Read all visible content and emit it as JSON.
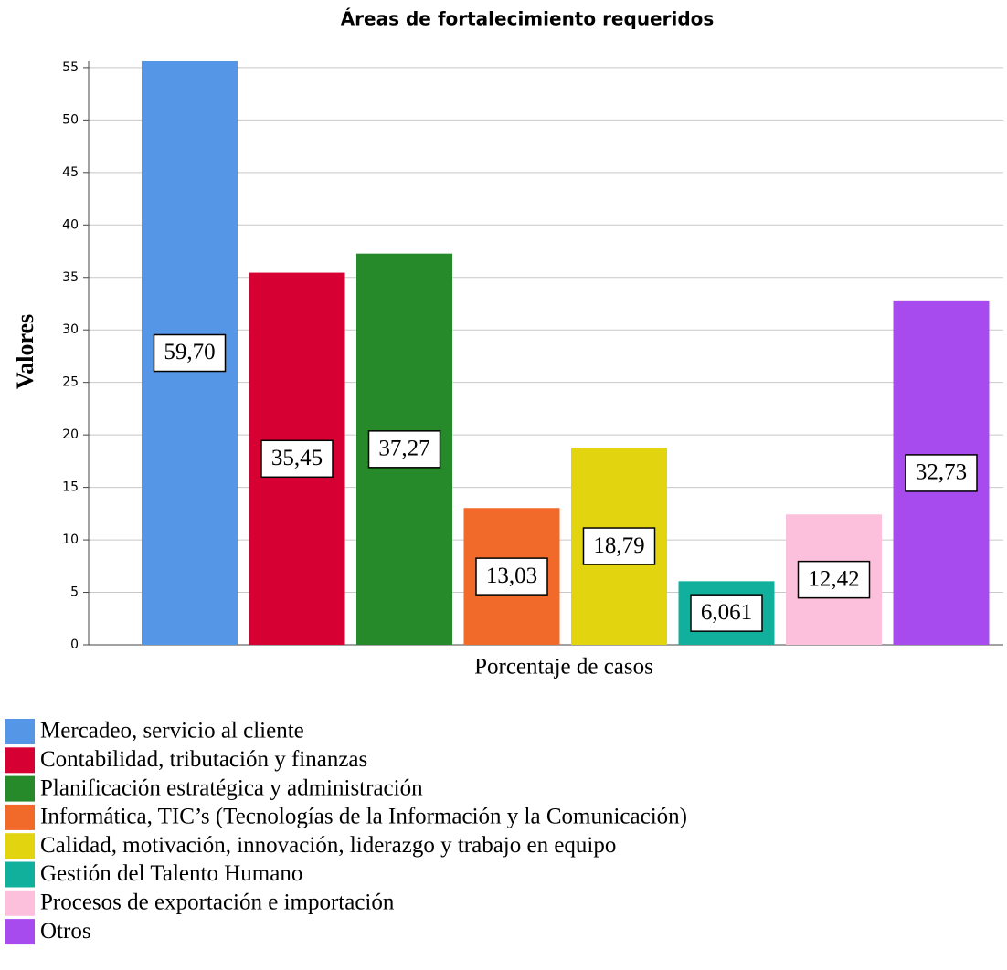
{
  "chart_data": {
    "type": "bar",
    "title": "Áreas de fortalecimiento requeridos",
    "y_label": "Valores",
    "categories": [
      "Porcentaje de casos"
    ],
    "series": [
      {
        "name": "Mercadeo, servicio al cliente",
        "color": "#5596e6",
        "values": [
          59.7
        ],
        "value_labels": [
          "59,70"
        ]
      },
      {
        "name": "Contabilidad, tributación y finanzas",
        "color": "#d60032",
        "values": [
          35.45
        ],
        "value_labels": [
          "35,45"
        ]
      },
      {
        "name": "Planificación estratégica y administración",
        "color": "#268a2b",
        "values": [
          37.27
        ],
        "value_labels": [
          "37,27"
        ]
      },
      {
        "name": "Informática, TIC’s (Tecnologías de la Información y la Comunicación)",
        "color": "#f26a2a",
        "values": [
          13.03
        ],
        "value_labels": [
          "13,03"
        ]
      },
      {
        "name": "Calidad, motivación, innovación, liderazgo y trabajo en equipo",
        "color": "#e2d510",
        "values": [
          18.79
        ],
        "value_labels": [
          "18,79"
        ]
      },
      {
        "name": "Gestión del Talento Humano",
        "color": "#10b09c",
        "values": [
          6.061
        ],
        "value_labels": [
          "6,061"
        ]
      },
      {
        "name": "Procesos de exportación e importación",
        "color": "#fdc0dc",
        "values": [
          12.42
        ],
        "value_labels": [
          "12,42"
        ]
      },
      {
        "name": "Otros",
        "color": "#a74bef",
        "values": [
          32.73
        ],
        "value_labels": [
          "32,73"
        ]
      }
    ],
    "ylim": [
      0,
      55.6
    ],
    "yticks": [
      0,
      5,
      10,
      15,
      20,
      25,
      30,
      35,
      40,
      45,
      50,
      55
    ],
    "grid": true,
    "legend": "bottom"
  }
}
